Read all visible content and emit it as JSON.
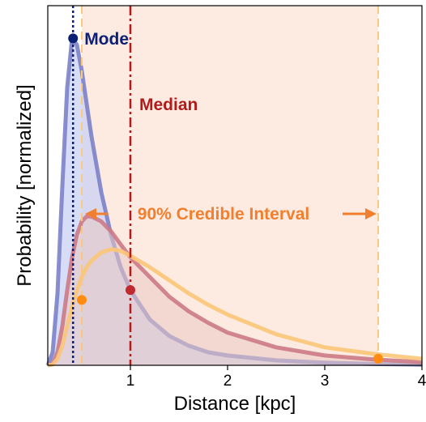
{
  "colors": {
    "mode": "#0b1f75",
    "median": "#b31b1b",
    "interval": "#f08030",
    "interval_fill": "#fde8dc",
    "curve_narrow": "#7c82c8",
    "curve_narrow_fill": "#c9d0f4",
    "curve_mid": "#cc7a86",
    "curve_mid_fill": "#e9c9c3",
    "curve_wide": "#fbc778",
    "point_orange": "#ff8c10",
    "point_red": "#c0292e"
  },
  "chart_data": {
    "type": "area",
    "xlabel": "Distance [kpc]",
    "ylabel": "Probability [normalized]",
    "xlim": [
      0.15,
      4.0
    ],
    "ylim": [
      0,
      1.1
    ],
    "xticks": [
      1,
      2,
      3,
      4
    ],
    "xtick_labels": [
      "1",
      "2",
      "3",
      "4"
    ],
    "yticks": [],
    "grid": false,
    "legend": "none",
    "series": [
      {
        "x": [
          0.15,
          0.2,
          0.25,
          0.3,
          0.35,
          0.4,
          0.45,
          0.5,
          0.55,
          0.6,
          0.7,
          0.8,
          0.9,
          1.0,
          1.2,
          1.4,
          1.6,
          1.8,
          2.0,
          2.5,
          3.0,
          3.5,
          4.0
        ],
        "values": [
          0,
          0.04,
          0.22,
          0.55,
          0.85,
          1.0,
          0.98,
          0.9,
          0.8,
          0.7,
          0.53,
          0.4,
          0.3,
          0.23,
          0.14,
          0.09,
          0.06,
          0.04,
          0.03,
          0.015,
          0.008,
          0.004,
          0.002
        ]
      },
      {
        "x": [
          0.15,
          0.2,
          0.25,
          0.3,
          0.35,
          0.4,
          0.45,
          0.5,
          0.55,
          0.6,
          0.7,
          0.8,
          0.9,
          1.0,
          1.2,
          1.4,
          1.6,
          1.8,
          2.0,
          2.5,
          3.0,
          3.5,
          4.0
        ],
        "values": [
          0,
          0.005,
          0.04,
          0.12,
          0.23,
          0.33,
          0.4,
          0.44,
          0.455,
          0.455,
          0.44,
          0.41,
          0.37,
          0.33,
          0.27,
          0.21,
          0.165,
          0.13,
          0.1,
          0.055,
          0.03,
          0.018,
          0.01
        ]
      },
      {
        "x": [
          0.15,
          0.2,
          0.25,
          0.3,
          0.35,
          0.4,
          0.45,
          0.5,
          0.55,
          0.6,
          0.7,
          0.8,
          0.9,
          1.0,
          1.2,
          1.4,
          1.6,
          1.8,
          2.0,
          2.5,
          3.0,
          3.5,
          4.0
        ],
        "values": [
          0,
          0.002,
          0.02,
          0.06,
          0.12,
          0.18,
          0.23,
          0.27,
          0.3,
          0.32,
          0.345,
          0.355,
          0.35,
          0.335,
          0.3,
          0.26,
          0.22,
          0.185,
          0.155,
          0.095,
          0.055,
          0.035,
          0.02
        ]
      }
    ],
    "vlines": {
      "mode": 0.41,
      "median": 1.0,
      "interval_low": 0.5,
      "interval_high": 3.55
    },
    "markers": [
      {
        "x": 0.41,
        "y": 1.0,
        "color": "mode"
      },
      {
        "x": 1.0,
        "y": 0.23,
        "color": "point_red"
      },
      {
        "x": 0.5,
        "y": 0.2,
        "color": "point_orange"
      },
      {
        "x": 3.55,
        "y": 0.02,
        "color": "point_orange"
      }
    ],
    "annotations": {
      "mode": "Mode",
      "median": "Median",
      "interval": "90% Credible Interval"
    }
  }
}
